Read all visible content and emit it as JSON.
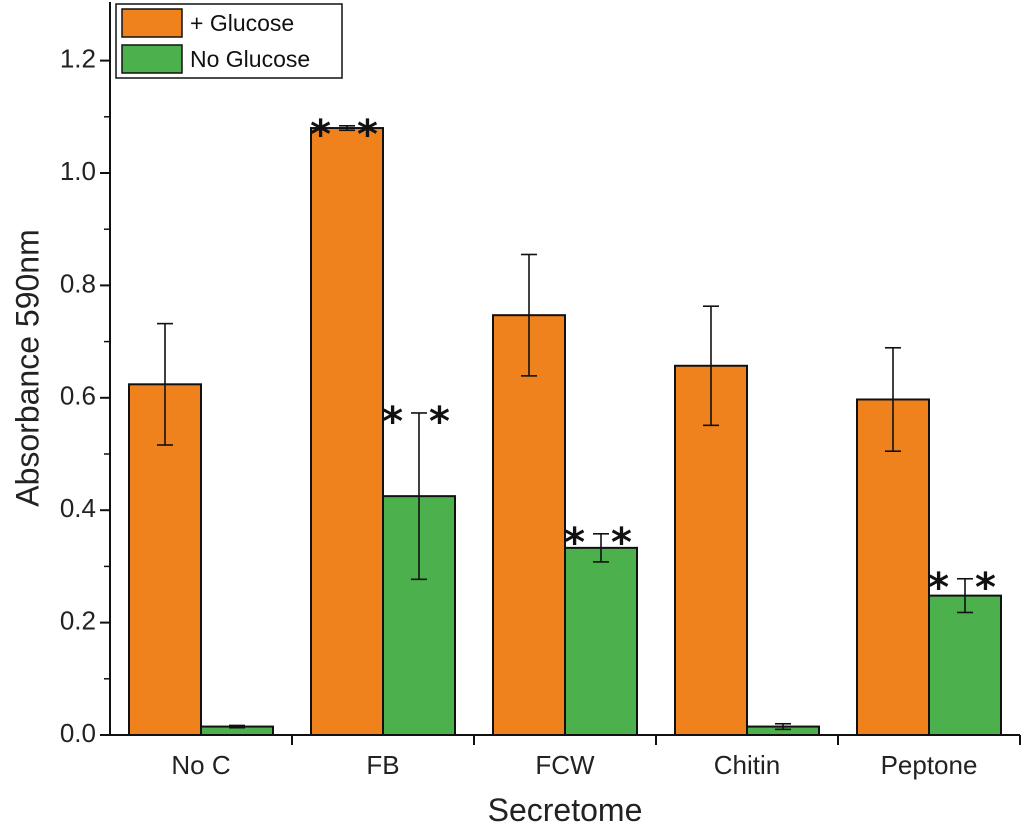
{
  "chart_data": {
    "type": "bar",
    "title": "",
    "xlabel": "Secretome",
    "ylabel": "Absorbance 590nm",
    "ylim": [
      0,
      1.3
    ],
    "yticks": [
      0.0,
      0.2,
      0.4,
      0.6,
      0.8,
      1.0,
      1.2
    ],
    "ytick_labels": [
      "0.0",
      "0.2",
      "0.4",
      "0.6",
      "0.8",
      "1.0",
      "1.2"
    ],
    "categories": [
      "No C",
      "FB",
      "FCW",
      "Chitin",
      "Peptone"
    ],
    "legend_position": "top-left",
    "series": [
      {
        "name": "+ Glucose",
        "color": "#f0821e",
        "values": [
          0.624,
          1.08,
          0.747,
          0.657,
          0.597
        ],
        "errors": [
          0.108,
          0.004,
          0.108,
          0.106,
          0.092
        ],
        "significance": [
          "",
          "**",
          "",
          "",
          ""
        ]
      },
      {
        "name": "No Glucose",
        "color": "#4cb04c",
        "values": [
          0.015,
          0.425,
          0.333,
          0.015,
          0.248
        ],
        "errors": [
          0.002,
          0.148,
          0.025,
          0.005,
          0.03
        ],
        "significance": [
          "",
          "**",
          "**",
          "",
          "**"
        ]
      }
    ]
  }
}
